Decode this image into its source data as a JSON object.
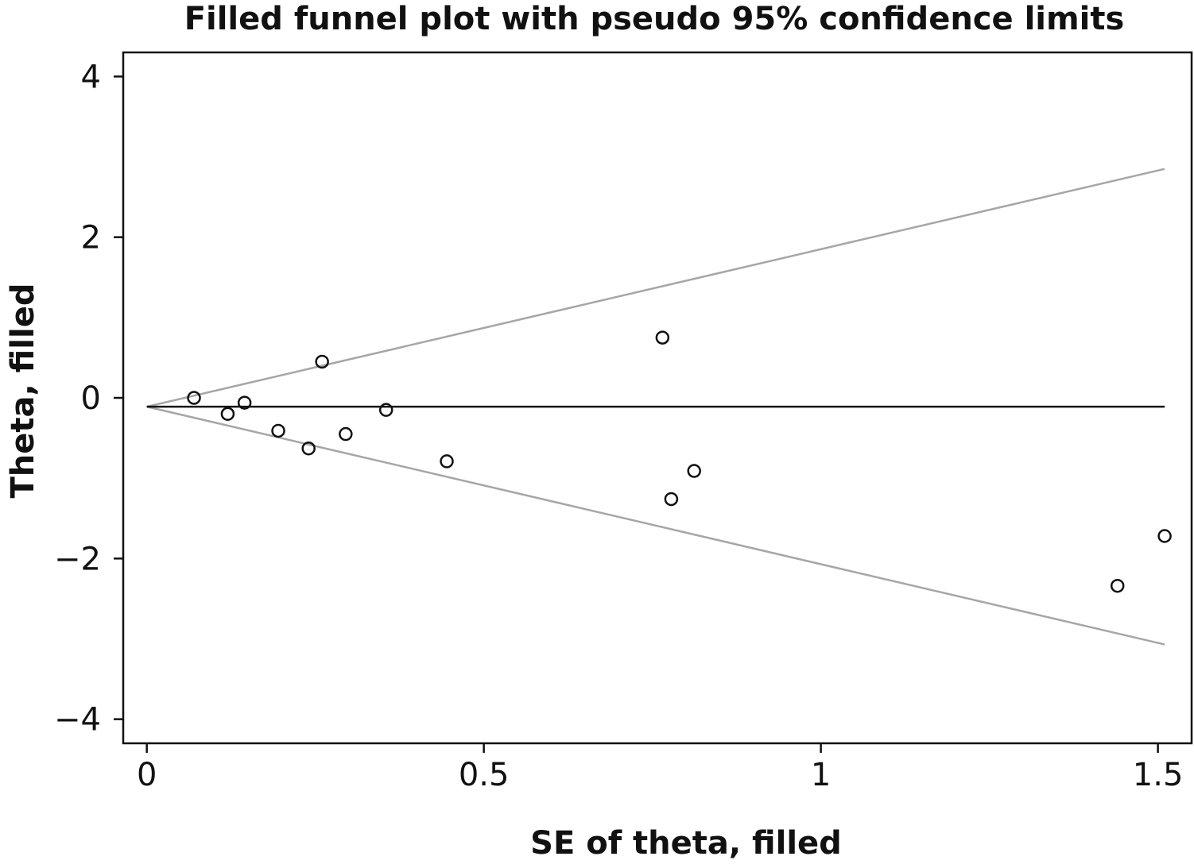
{
  "chart_data": {
    "type": "scatter",
    "title": "Filled funnel plot with pseudo 95% confidence limits",
    "xlabel": "SE of theta, filled",
    "ylabel": "Theta, filled",
    "xlim": [
      -0.035,
      1.55
    ],
    "ylim": [
      -4.3,
      4.3
    ],
    "x_ticks": [
      {
        "value": 0,
        "label": "0"
      },
      {
        "value": 0.5,
        "label": "0.5"
      },
      {
        "value": 1,
        "label": "1"
      },
      {
        "value": 1.5,
        "label": "1.5"
      }
    ],
    "y_ticks": [
      {
        "value": 4,
        "label": "4"
      },
      {
        "value": 2,
        "label": "2"
      },
      {
        "value": 0,
        "label": "0"
      },
      {
        "value": -2,
        "label": "−2"
      },
      {
        "value": -4,
        "label": "−4"
      }
    ],
    "grid": false,
    "legend": "none",
    "pooled_estimate": -0.11,
    "confidence_limits": {
      "upper": [
        [
          0,
          -0.11
        ],
        [
          1.51,
          2.85
        ]
      ],
      "lower": [
        [
          0,
          -0.11
        ],
        [
          1.51,
          -3.07
        ]
      ]
    },
    "points": [
      {
        "x": 0.07,
        "y": 0.0
      },
      {
        "x": 0.12,
        "y": -0.2
      },
      {
        "x": 0.145,
        "y": -0.06
      },
      {
        "x": 0.195,
        "y": -0.41
      },
      {
        "x": 0.24,
        "y": -0.63
      },
      {
        "x": 0.26,
        "y": 0.45
      },
      {
        "x": 0.295,
        "y": -0.45
      },
      {
        "x": 0.355,
        "y": -0.15
      },
      {
        "x": 0.445,
        "y": -0.79
      },
      {
        "x": 0.765,
        "y": 0.75
      },
      {
        "x": 0.778,
        "y": -1.26
      },
      {
        "x": 0.812,
        "y": -0.91
      },
      {
        "x": 1.44,
        "y": -2.34
      },
      {
        "x": 1.51,
        "y": -1.72
      }
    ],
    "colors": {
      "pooled_line": "#111111",
      "limit_lines": "#a6a6a6",
      "points": "#111111",
      "frame": "#111111"
    }
  }
}
